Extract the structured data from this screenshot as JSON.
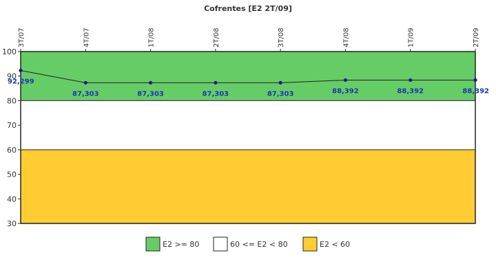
{
  "chart_data": {
    "type": "line",
    "title": "Cofrentes [E2 2T/09]",
    "categories": [
      "3T/07",
      "4T/07",
      "1T/08",
      "2T/08",
      "3T/08",
      "4T/08",
      "1T/09",
      "2T/09"
    ],
    "values": [
      92.299,
      87.303,
      87.303,
      87.303,
      87.303,
      88.392,
      88.392,
      88.392
    ],
    "data_labels": [
      "92,299",
      "87,303",
      "87,303",
      "87,303",
      "87,303",
      "88,392",
      "88,392",
      "88,392"
    ],
    "ylim": [
      30,
      100
    ],
    "yticks": [
      "30",
      "40",
      "50",
      "60",
      "70",
      "80",
      "90",
      "100"
    ],
    "xlabel": "",
    "ylabel": "",
    "bands": [
      {
        "label": "E2 >= 80",
        "from": 80,
        "to": 100,
        "color": "#66cc66"
      },
      {
        "label": "60 <= E2 < 80",
        "from": 60,
        "to": 80,
        "color": "#ffffff"
      },
      {
        "label": "E2 < 60",
        "from": 30,
        "to": 60,
        "color": "#ffcc33"
      }
    ],
    "line_color": "#222222",
    "marker_color": "#1a1a99",
    "label_color": "#1a36b8",
    "legend_position": "bottom"
  }
}
